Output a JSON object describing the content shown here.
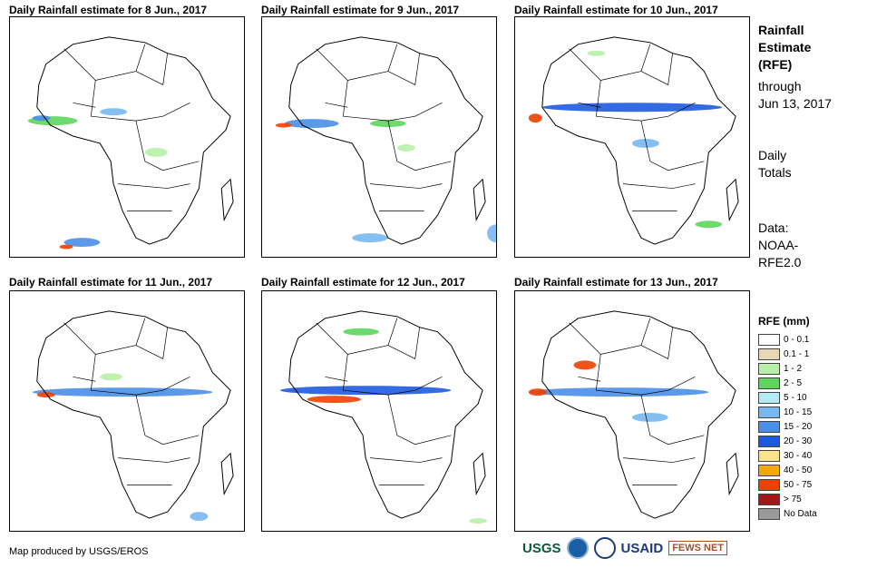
{
  "panels": [
    {
      "title": "Daily Rainfall estimate for 8 Jun., 2017"
    },
    {
      "title": "Daily Rainfall estimate for 9 Jun., 2017"
    },
    {
      "title": "Daily Rainfall estimate for 10 Jun., 2017"
    },
    {
      "title": "Daily Rainfall estimate for 11 Jun., 2017"
    },
    {
      "title": "Daily Rainfall estimate for 12 Jun., 2017"
    },
    {
      "title": "Daily Rainfall estimate for 13 Jun., 2017"
    }
  ],
  "sidebar": {
    "title": [
      "Rainfall",
      "Estimate",
      "(RFE)"
    ],
    "through": [
      "through",
      "Jun 13, 2017"
    ],
    "totals": [
      "Daily",
      "Totals"
    ],
    "data": [
      "Data:",
      "NOAA-",
      "RFE2.0"
    ]
  },
  "legend": {
    "title": "RFE (mm)",
    "items": [
      {
        "label": "0 - 0.1",
        "color": "#ffffff"
      },
      {
        "label": "0.1 - 1",
        "color": "#e8d7b4"
      },
      {
        "label": "1 - 2",
        "color": "#b8f0a8"
      },
      {
        "label": "2 - 5",
        "color": "#5ed65e"
      },
      {
        "label": "5 - 10",
        "color": "#b4ecf4"
      },
      {
        "label": "10 - 15",
        "color": "#78b8f0"
      },
      {
        "label": "15 - 20",
        "color": "#4a8ee8"
      },
      {
        "label": "20 - 30",
        "color": "#1e5ae0"
      },
      {
        "label": "30 - 40",
        "color": "#fae48c"
      },
      {
        "label": "40 - 50",
        "color": "#f5a800"
      },
      {
        "label": "50 - 75",
        "color": "#f04000"
      },
      {
        "label": "> 75",
        "color": "#a01818"
      },
      {
        "label": "No Data",
        "color": "#9a9a9a"
      }
    ]
  },
  "credit": "Map produced by USGS/EROS",
  "logos": {
    "usgs": "USGS",
    "usaid": "USAID",
    "fews": "FEWS NET"
  }
}
